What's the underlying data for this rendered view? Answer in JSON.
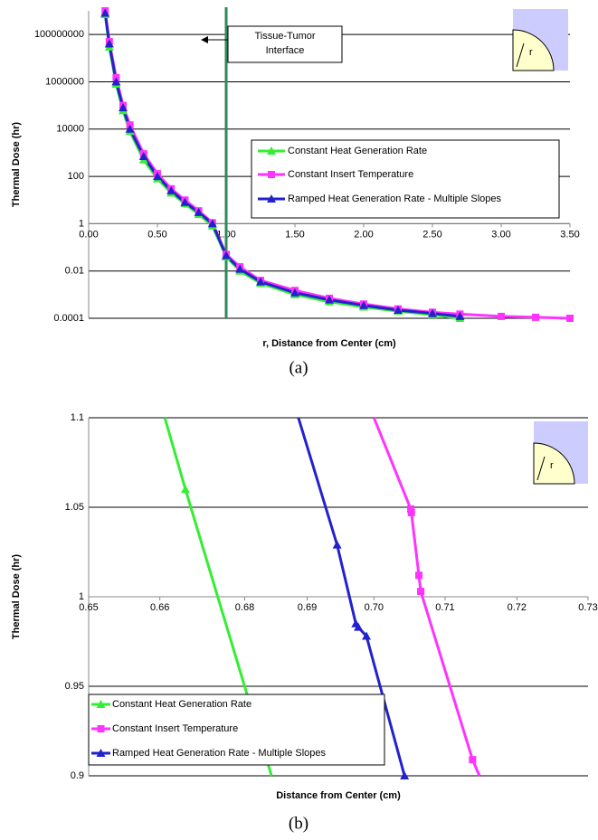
{
  "chart_data": [
    {
      "type": "line",
      "log_y": true,
      "grid": true,
      "legend": "right",
      "y_label": "Thermal Dose (hr)",
      "x_label": "r, Distance from Center (cm)",
      "caption": "(a)",
      "annotation": [
        "Tissue-Tumor",
        "Interface"
      ],
      "interface_x": 1.0,
      "interface_color": "#2e8b57",
      "inset_label": "r",
      "x_axis_at": 1,
      "xlim": [
        0,
        3.5
      ],
      "xticks": [
        {
          "value": 0,
          "label": "0.00"
        },
        {
          "value": 0.5,
          "label": "0.50"
        },
        {
          "value": 1,
          "label": "1.00"
        },
        {
          "value": 1.5,
          "label": "1.50"
        },
        {
          "value": 2,
          "label": "2.00"
        },
        {
          "value": 2.5,
          "label": "2.50"
        },
        {
          "value": 3,
          "label": "3.00"
        },
        {
          "value": 3.5,
          "label": "3.50"
        }
      ],
      "ylim": [
        0.0001,
        1000000000
      ],
      "yticks": [
        0.0001,
        0.01,
        1,
        100,
        10000,
        1000000,
        100000000
      ],
      "x": [
        0.12,
        0.15,
        0.2,
        0.25,
        0.3,
        0.4,
        0.5,
        0.6,
        0.7,
        0.8,
        0.9,
        1.0,
        1.1,
        1.25,
        1.5,
        1.75,
        2.0,
        2.25,
        2.5,
        2.7,
        3.0,
        3.25,
        3.5
      ],
      "series": [
        {
          "name": "Constant Heat Generation Rate",
          "color": "#33ee33",
          "marker": "triangle",
          "values": [
            700000000,
            30000000,
            800000,
            60000,
            8000,
            500,
            80,
            20,
            7,
            2.5,
            0.8,
            0.04,
            0.01,
            0.003,
            0.001,
            0.0005,
            0.0003,
            0.0002,
            0.00014,
            0.0001,
            null,
            null,
            null
          ]
        },
        {
          "name": "Constant Insert Temperature",
          "color": "#ff33ff",
          "marker": "square",
          "values": [
            1000000000,
            50000000,
            1500000,
            100000,
            15000,
            900,
            130,
            30,
            10,
            3.5,
            1.1,
            0.05,
            0.015,
            0.004,
            0.0015,
            0.0007,
            0.0004,
            0.00025,
            0.00018,
            0.00015,
            0.00012,
            0.00011,
            0.0001
          ]
        },
        {
          "name": "Ramped Heat Generation Rate - Multiple Slopes",
          "color": "#2222cc",
          "marker": "triangle",
          "values": [
            800000000,
            40000000,
            1000000,
            80000,
            10000,
            700,
            100,
            25,
            8,
            3,
            1,
            0.045,
            0.012,
            0.0035,
            0.0012,
            0.0006,
            0.00035,
            0.00022,
            0.00016,
            0.00012,
            null,
            null,
            null
          ]
        }
      ]
    },
    {
      "type": "line",
      "log_y": false,
      "grid": true,
      "legend": "lower left",
      "y_label": "Thermal Dose (hr)",
      "x_label": "Distance from Center (cm)",
      "caption": "(b)",
      "inset_label": "r",
      "x_axis_at": 1,
      "xlim": [
        0.65,
        0.73
      ],
      "xticks": [
        {
          "value": 0.65,
          "label": "0.65"
        },
        {
          "value": 0.6614,
          "label": "0.66"
        },
        {
          "value": 0.675,
          "label": "0.68"
        },
        {
          "value": 0.685,
          "label": "0.69"
        },
        {
          "value": 0.6957,
          "label": "0.70"
        },
        {
          "value": 0.7071,
          "label": "0.71"
        },
        {
          "value": 0.7186,
          "label": "0.72"
        },
        {
          "value": 0.73,
          "label": "0.73"
        }
      ],
      "ylim": [
        0.9,
        1.1
      ],
      "yticks": [
        0.9,
        0.95,
        1,
        1.05,
        1.1
      ],
      "series": [
        {
          "name": "Constant Heat Generation Rate",
          "color": "#33ee33",
          "marker": "triangle",
          "x": [
            0.6622,
            0.6655,
            0.6793
          ],
          "values": [
            1.1,
            1.06,
            0.9
          ],
          "markers": [
            false,
            true,
            false
          ]
        },
        {
          "name": "Constant Insert Temperature",
          "color": "#ff33ff",
          "marker": "square",
          "x": [
            0.6957,
            0.7016,
            0.7017,
            0.7029,
            0.7032,
            0.7115,
            0.7126
          ],
          "values": [
            1.1,
            1.049,
            1.047,
            1.012,
            1.003,
            0.909,
            0.9
          ],
          "markers": [
            false,
            true,
            true,
            true,
            true,
            true,
            false
          ]
        },
        {
          "name": "Ramped Heat Generation Rate - Multiple Slopes",
          "color": "#2222cc",
          "marker": "triangle",
          "x": [
            0.6836,
            0.6898,
            0.6928,
            0.6932,
            0.6945,
            0.7006
          ],
          "values": [
            1.1,
            1.029,
            0.985,
            0.983,
            0.978,
            0.9
          ],
          "markers": [
            false,
            true,
            true,
            true,
            true,
            true
          ]
        }
      ]
    }
  ]
}
